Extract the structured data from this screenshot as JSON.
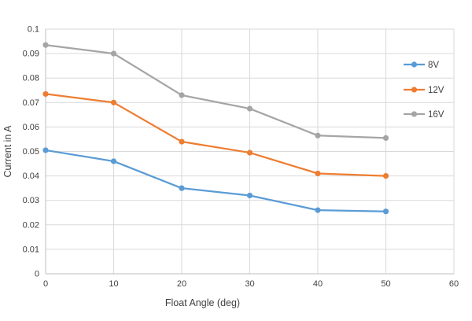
{
  "chart_data": {
    "type": "line",
    "title": "",
    "xlabel": "Float Angle (deg)",
    "ylabel": "Current in A",
    "x": [
      0,
      10,
      20,
      30,
      40,
      50
    ],
    "series": [
      {
        "name": "8V",
        "color": "#5B9BD5",
        "values": [
          0.0505,
          0.046,
          0.035,
          0.032,
          0.026,
          0.0255
        ]
      },
      {
        "name": "12V",
        "color": "#ED7D31",
        "values": [
          0.0735,
          0.07,
          0.054,
          0.0495,
          0.041,
          0.04
        ]
      },
      {
        "name": "16V",
        "color": "#A5A5A5",
        "values": [
          0.0935,
          0.09,
          0.073,
          0.0675,
          0.0565,
          0.0555
        ]
      }
    ],
    "xlim": [
      0,
      60
    ],
    "ylim": [
      0,
      0.1
    ],
    "x_tick_labels": [
      "0",
      "10",
      "20",
      "30",
      "40",
      "50",
      "60"
    ],
    "y_tick_labels": [
      "0",
      "0.01",
      "0.02",
      "0.03",
      "0.04",
      "0.05",
      "0.06",
      "0.07",
      "0.08",
      "0.09",
      "0.1"
    ],
    "grid": true,
    "legend_position": "inside-right",
    "legend": [
      "8V",
      "12V",
      "16V"
    ],
    "colors": {
      "gridline": "#D9D9D9",
      "axis_line": "#BFBFBF",
      "tick_text": "#404040",
      "axis_title_text": "#404040",
      "background": "#FFFFFF"
    }
  }
}
